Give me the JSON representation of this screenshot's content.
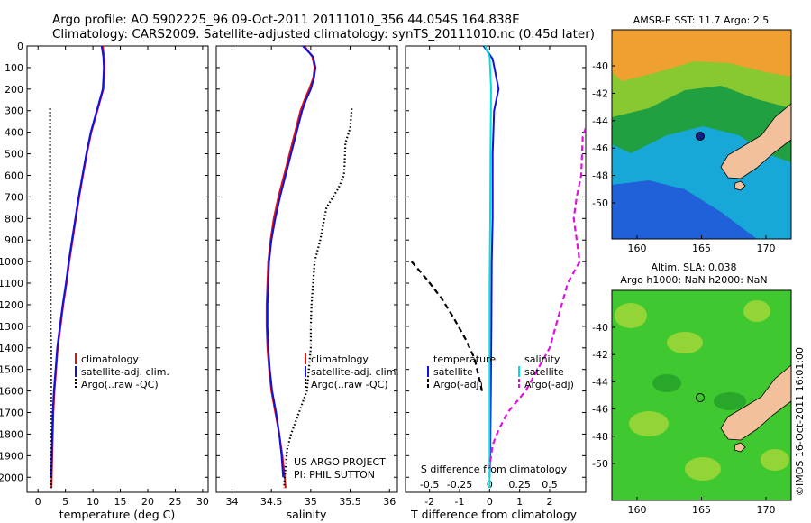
{
  "header": {
    "line1": "Argo profile: AO 5902225_96 09-Oct-2011 20111010_356 44.054S 164.838E",
    "line2": "Climatology: CARS2009. Satellite-adjusted climatology: synTS_20111010.nc (0.45d later)"
  },
  "chart_data": [
    {
      "id": "temperature",
      "type": "line",
      "xlabel": "temperature (deg C)",
      "ylabel": "",
      "xlim": [
        -2,
        31
      ],
      "ylim": [
        2070,
        0
      ],
      "y_reversed": true,
      "x_ticks": [
        0,
        5,
        10,
        15,
        20,
        25,
        30
      ],
      "y_ticks": [
        0,
        100,
        200,
        300,
        400,
        500,
        600,
        700,
        800,
        900,
        1000,
        1100,
        1200,
        1300,
        1400,
        1500,
        1600,
        1700,
        1800,
        1900,
        2000
      ],
      "legend": {
        "entries": [
          "climatology",
          "satellite-adj. clim.",
          "Argo(..raw -QC)"
        ],
        "placement": "lower-right"
      },
      "series": [
        {
          "name": "climatology",
          "color": "#e01010",
          "style": "solid",
          "points": [
            [
              11.8,
              0
            ],
            [
              12.0,
              50
            ],
            [
              12.1,
              100
            ],
            [
              12.0,
              150
            ],
            [
              11.9,
              200
            ],
            [
              10.8,
              300
            ],
            [
              9.7,
              400
            ],
            [
              8.9,
              500
            ],
            [
              8.2,
              600
            ],
            [
              7.5,
              700
            ],
            [
              6.9,
              800
            ],
            [
              6.3,
              900
            ],
            [
              5.7,
              1000
            ],
            [
              5.2,
              1100
            ],
            [
              4.6,
              1200
            ],
            [
              4.1,
              1300
            ],
            [
              3.6,
              1400
            ],
            [
              3.3,
              1500
            ],
            [
              3.0,
              1600
            ],
            [
              2.8,
              1700
            ],
            [
              2.7,
              1800
            ],
            [
              2.6,
              1900
            ],
            [
              2.5,
              2000
            ],
            [
              2.45,
              2050
            ]
          ]
        },
        {
          "name": "satellite-adj. clim.",
          "color": "#1010e0",
          "style": "solid",
          "points": [
            [
              11.6,
              0
            ],
            [
              11.9,
              50
            ],
            [
              12.0,
              100
            ],
            [
              11.9,
              150
            ],
            [
              11.8,
              200
            ],
            [
              10.7,
              300
            ],
            [
              9.6,
              400
            ],
            [
              8.8,
              500
            ],
            [
              8.1,
              600
            ],
            [
              7.4,
              700
            ],
            [
              6.8,
              800
            ],
            [
              6.2,
              900
            ],
            [
              5.6,
              1000
            ],
            [
              5.1,
              1100
            ],
            [
              4.5,
              1200
            ],
            [
              4.0,
              1300
            ],
            [
              3.5,
              1400
            ],
            [
              3.2,
              1500
            ],
            [
              2.9,
              1600
            ],
            [
              2.7,
              1700
            ],
            [
              2.6,
              1800
            ],
            [
              2.5,
              1900
            ],
            [
              2.4,
              2000
            ]
          ]
        },
        {
          "name": "Argo(..raw -QC)",
          "color": "#000000",
          "style": "dotted",
          "points": [
            [
              2.2,
              290
            ],
            [
              2.2,
              400
            ],
            [
              2.2,
              500
            ],
            [
              2.2,
              600
            ],
            [
              2.2,
              700
            ],
            [
              2.2,
              800
            ],
            [
              2.2,
              900
            ],
            [
              2.3,
              1000
            ],
            [
              2.3,
              1100
            ],
            [
              2.3,
              1200
            ],
            [
              2.3,
              1300
            ],
            [
              2.4,
              1400
            ],
            [
              2.4,
              1500
            ],
            [
              2.4,
              1600
            ],
            [
              2.4,
              1700
            ],
            [
              2.4,
              1800
            ],
            [
              2.4,
              1900
            ],
            [
              2.4,
              2000
            ],
            [
              2.4,
              2050
            ]
          ]
        }
      ]
    },
    {
      "id": "salinity",
      "type": "line",
      "xlabel": "salinity",
      "ylabel": "",
      "xlim": [
        33.8,
        36.1
      ],
      "ylim": [
        2070,
        0
      ],
      "y_reversed": true,
      "x_ticks": [
        34,
        34.5,
        35,
        35.5,
        36
      ],
      "x_tick_labels": [
        "34",
        "34.5",
        "35",
        "35.5",
        "36"
      ],
      "legend": {
        "entries": [
          "climatology",
          "satellite-adj. clim.",
          "Argo(..raw -QC)"
        ],
        "placement": "lower-right"
      },
      "annotations": [
        "US ARGO PROJECT",
        "PI: PHIL SUTTON"
      ],
      "series": [
        {
          "name": "climatology",
          "color": "#e01010",
          "style": "solid",
          "points": [
            [
              34.92,
              0
            ],
            [
              35.02,
              50
            ],
            [
              35.05,
              100
            ],
            [
              35.03,
              150
            ],
            [
              34.98,
              200
            ],
            [
              34.92,
              250
            ],
            [
              34.87,
              300
            ],
            [
              34.8,
              400
            ],
            [
              34.73,
              500
            ],
            [
              34.66,
              600
            ],
            [
              34.59,
              700
            ],
            [
              34.53,
              800
            ],
            [
              34.49,
              900
            ],
            [
              34.46,
              1000
            ],
            [
              34.45,
              1100
            ],
            [
              34.44,
              1200
            ],
            [
              34.44,
              1300
            ],
            [
              34.45,
              1400
            ],
            [
              34.47,
              1500
            ],
            [
              34.5,
              1600
            ],
            [
              34.55,
              1700
            ],
            [
              34.6,
              1800
            ],
            [
              34.64,
              1900
            ],
            [
              34.67,
              2000
            ],
            [
              34.68,
              2050
            ]
          ]
        },
        {
          "name": "satellite-adj. clim.",
          "color": "#1010e0",
          "style": "solid",
          "points": [
            [
              34.9,
              0
            ],
            [
              35.03,
              50
            ],
            [
              35.06,
              100
            ],
            [
              35.04,
              150
            ],
            [
              35.0,
              200
            ],
            [
              34.94,
              250
            ],
            [
              34.89,
              300
            ],
            [
              34.82,
              400
            ],
            [
              34.75,
              500
            ],
            [
              34.68,
              600
            ],
            [
              34.61,
              700
            ],
            [
              34.55,
              800
            ],
            [
              34.5,
              900
            ],
            [
              34.47,
              1000
            ],
            [
              34.46,
              1100
            ],
            [
              34.45,
              1200
            ],
            [
              34.45,
              1300
            ],
            [
              34.46,
              1400
            ],
            [
              34.48,
              1500
            ],
            [
              34.51,
              1600
            ],
            [
              34.56,
              1700
            ],
            [
              34.6,
              1800
            ],
            [
              34.63,
              1900
            ],
            [
              34.65,
              2000
            ]
          ]
        },
        {
          "name": "Argo(..raw -QC)",
          "color": "#000000",
          "style": "dotted",
          "points": [
            [
              35.52,
              290
            ],
            [
              35.5,
              380
            ],
            [
              35.44,
              450
            ],
            [
              35.43,
              550
            ],
            [
              35.42,
              600
            ],
            [
              35.35,
              660
            ],
            [
              35.2,
              750
            ],
            [
              35.12,
              900
            ],
            [
              35.05,
              1000
            ],
            [
              35.03,
              1100
            ],
            [
              35.02,
              1150
            ],
            [
              35.01,
              1200
            ],
            [
              35.0,
              1300
            ],
            [
              35.0,
              1350
            ],
            [
              35.0,
              1400
            ],
            [
              34.95,
              1600
            ],
            [
              34.85,
              1700
            ],
            [
              34.75,
              1800
            ],
            [
              34.7,
              1870
            ],
            [
              34.68,
              1950
            ],
            [
              34.66,
              2050
            ]
          ]
        }
      ]
    },
    {
      "id": "difference",
      "type": "line",
      "xlabel": "T difference from climatology",
      "ylabel": "",
      "xlim": [
        -2.8,
        3.2
      ],
      "ylim": [
        2070,
        0
      ],
      "y_reversed": true,
      "x_ticks": [
        -2,
        -1,
        0,
        1,
        2
      ],
      "top_axis_label": "S difference from climatology",
      "top_ticks": [
        -0.5,
        -0.25,
        0,
        0.25,
        0.5
      ],
      "top_tick_labels": [
        "-0.5",
        "-0.25",
        "0",
        "0.25",
        "0.5"
      ],
      "legend": {
        "entries": [
          "temperature",
          "satellite",
          "Argo(-adj)",
          "salinity",
          "satellite",
          "Argo(-adj)"
        ],
        "placement": "lower-center"
      },
      "series": [
        {
          "name": "temperature satellite",
          "color": "#1010e0",
          "style": "solid",
          "points": [
            [
              -0.2,
              0
            ],
            [
              0.1,
              60
            ],
            [
              0.3,
              200
            ],
            [
              0.15,
              300
            ],
            [
              0.1,
              500
            ],
            [
              0.1,
              800
            ],
            [
              0.07,
              1000
            ],
            [
              0.06,
              1300
            ],
            [
              0.04,
              1600
            ],
            [
              0.02,
              1900
            ],
            [
              0.0,
              2000
            ]
          ]
        },
        {
          "name": "temperature Argo(-adj)",
          "color": "#000000",
          "style": "dashed",
          "points": [
            [
              -2.6,
              1000
            ],
            [
              -2.1,
              1080
            ],
            [
              -1.6,
              1170
            ],
            [
              -1.2,
              1260
            ],
            [
              -0.8,
              1360
            ],
            [
              -0.5,
              1450
            ],
            [
              -0.35,
              1540
            ],
            [
              -0.25,
              1600
            ]
          ]
        },
        {
          "name": "salinity satellite",
          "color": "#00e0e0",
          "style": "solid",
          "points": [
            [
              -0.15,
              0
            ],
            [
              0.0,
              50
            ],
            [
              0.05,
              200
            ],
            [
              0.03,
              500
            ],
            [
              0.02,
              800
            ],
            [
              0.0,
              1100
            ],
            [
              0.0,
              1400
            ],
            [
              0.0,
              1700
            ],
            [
              0.0,
              2050
            ]
          ]
        },
        {
          "name": "salinity Argo(-adj)",
          "color": "#e010e0",
          "style": "dashed",
          "points": [
            [
              3.2,
              380
            ],
            [
              3.1,
              420
            ],
            [
              3.05,
              600
            ],
            [
              2.9,
              700
            ],
            [
              2.8,
              800
            ],
            [
              3.0,
              1000
            ],
            [
              2.6,
              1100
            ],
            [
              2.4,
              1200
            ],
            [
              2.2,
              1300
            ],
            [
              2.0,
              1400
            ],
            [
              1.6,
              1500
            ],
            [
              1.2,
              1600
            ],
            [
              0.6,
              1700
            ],
            [
              0.3,
              1780
            ],
            [
              0.1,
              1850
            ],
            [
              0.0,
              1950
            ]
          ]
        }
      ]
    }
  ],
  "maps": {
    "sst": {
      "title": "AMSR-E SST: 11.7 Argo: 2.5",
      "y_ticks": [
        "-40",
        "-42",
        "-44",
        "-46",
        "-48",
        "-50"
      ],
      "x_ticks": [
        "160",
        "165",
        "170"
      ],
      "float_position": "44.054S 164.838E"
    },
    "sla": {
      "title_line1": "Altim. SLA: 0.038",
      "title_line2": "Argo h1000: NaN h2000: NaN",
      "y_ticks": [
        "-40",
        "-42",
        "-44",
        "-46",
        "-48",
        "-50"
      ],
      "x_ticks": [
        "160",
        "165",
        "170"
      ]
    }
  },
  "footer": {
    "credit": "©IMOS 16-Oct-2011 16:01:00"
  },
  "colors": {
    "land": "#f2c09a",
    "sst_warm": "#f0a030",
    "sst_cool": "#2060d8",
    "sla_field": "#40c830"
  }
}
